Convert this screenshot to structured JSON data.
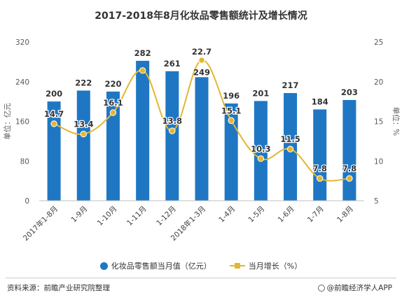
{
  "chart_data": {
    "type": "bar",
    "title": "2017-2018年8月化妆品零售额统计及增长情况",
    "categories": [
      "2017年1-8月",
      "1-9月",
      "1-10月",
      "1-11月",
      "1-12月",
      "2018年1-3月",
      "1-4月",
      "1-5月",
      "1-6月",
      "1-7月",
      "1-8月"
    ],
    "series": [
      {
        "name": "化妆品零售额当月值（亿元）",
        "type": "bar",
        "axis": "left",
        "color": "#1f77c4",
        "values": [
          200,
          222,
          220,
          282,
          261,
          249,
          196,
          201,
          217,
          184,
          203
        ]
      },
      {
        "name": "当月增长（%）",
        "type": "line",
        "axis": "right",
        "color": "#e3b631",
        "values": [
          14.7,
          13.4,
          16.1,
          21.4,
          13.8,
          22.7,
          15.1,
          10.3,
          11.5,
          7.8,
          7.8
        ],
        "labels": [
          "14.7",
          "13.4",
          "16.1",
          "",
          "13.8",
          "22.7",
          "15.1",
          "10.3",
          "11.5",
          "7.8",
          "7.8"
        ]
      }
    ],
    "ylabel": "单位：亿元",
    "y2label": "单位：%",
    "ylim": [
      0,
      320
    ],
    "y2lim": [
      5,
      25
    ],
    "yticks": [
      0,
      80,
      160,
      240,
      320
    ],
    "y2ticks": [
      5,
      10,
      15,
      20,
      25
    ],
    "grid": false,
    "legend_position": "bottom"
  },
  "footer": {
    "source": "资料来源：前瞻产业研究院整理",
    "brand": "@前瞻经济学人APP"
  }
}
